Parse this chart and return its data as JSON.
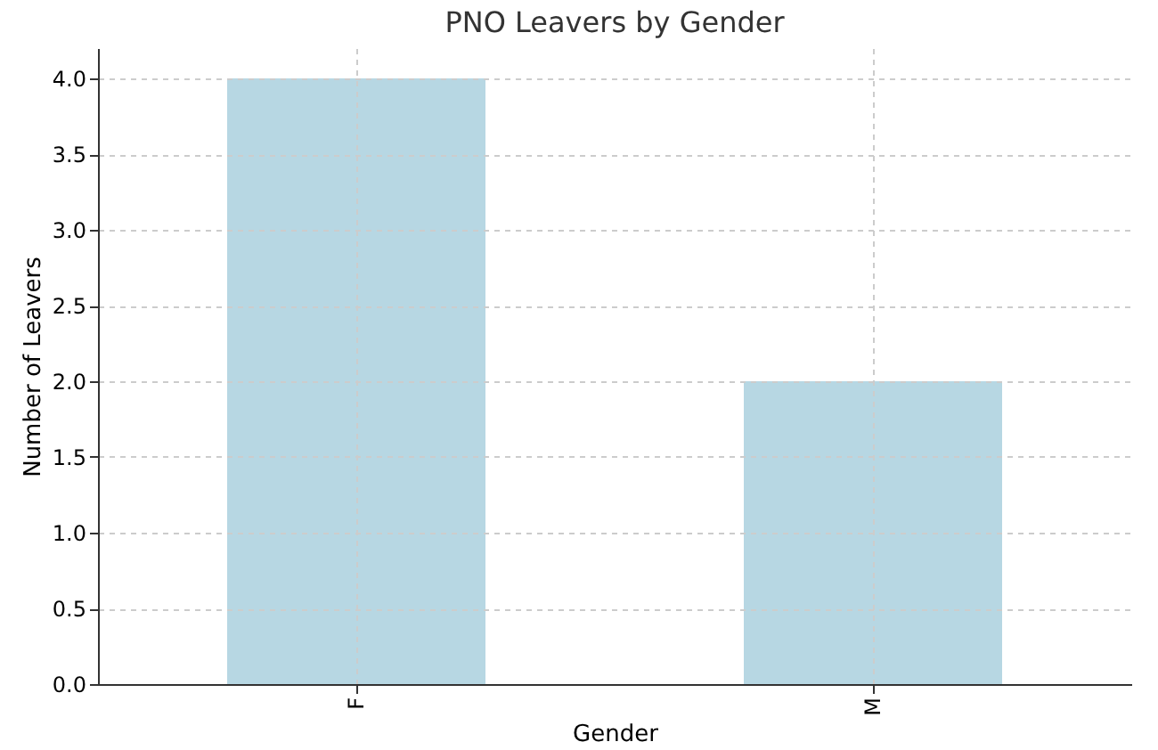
{
  "chart_data": {
    "type": "bar",
    "title": "PNO Leavers by Gender",
    "xlabel": "Gender",
    "ylabel": "Number of Leavers",
    "categories": [
      "F",
      "M"
    ],
    "values": [
      4,
      2
    ],
    "color": "#b7d7e3",
    "ylim": [
      0,
      4.2
    ],
    "yticks": [
      {
        "value": 0,
        "label": "0.0"
      },
      {
        "value": 0.5,
        "label": "0.5"
      },
      {
        "value": 1,
        "label": "1.0"
      },
      {
        "value": 1.5,
        "label": "1.5"
      },
      {
        "value": 2,
        "label": "2.0"
      },
      {
        "value": 2.5,
        "label": "2.5"
      },
      {
        "value": 3,
        "label": "3.0"
      },
      {
        "value": 3.5,
        "label": "3.5"
      },
      {
        "value": 4,
        "label": "4.0"
      }
    ],
    "grid": true
  }
}
